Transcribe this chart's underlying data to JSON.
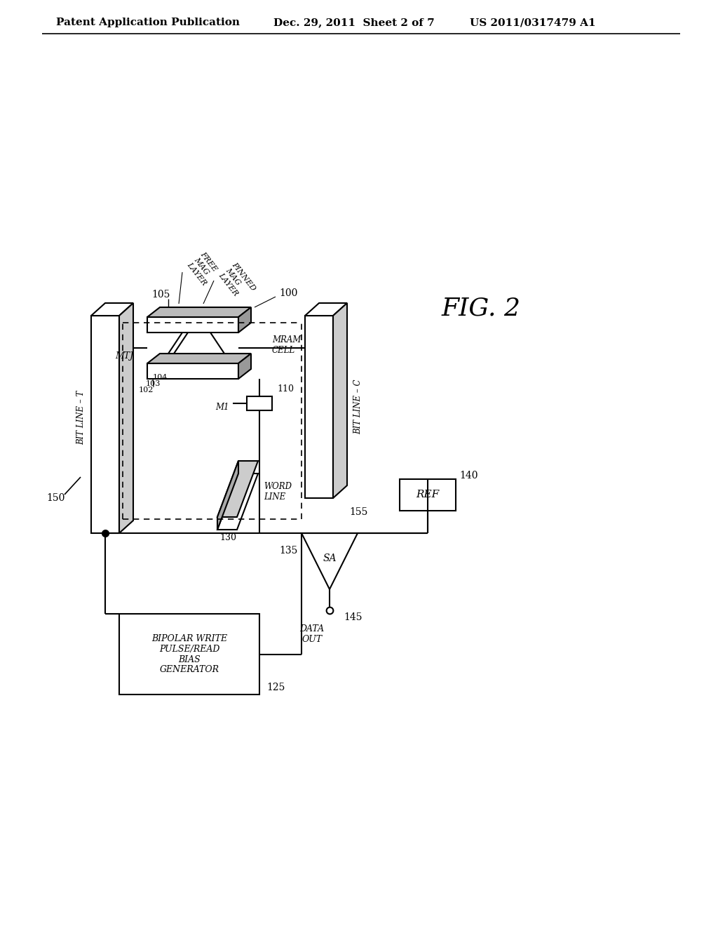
{
  "bg_color": "#ffffff",
  "line_color": "#000000",
  "header_text": "Patent Application Publication",
  "header_date": "Dec. 29, 2011  Sheet 2 of 7",
  "header_patent": "US 2011/0317479 A1",
  "fig_label": "FIG. 2",
  "label_150": "150",
  "label_105": "105",
  "label_100": "100",
  "label_102": "102",
  "label_103": "103",
  "label_104": "104",
  "label_110": "110",
  "label_130": "130",
  "label_155": "155",
  "label_125": "125",
  "label_135": "135",
  "label_140": "140",
  "label_145": "145",
  "label_mtj": "MTJ",
  "label_m1": "M1",
  "label_mram_cell": "MRAM\nCELL",
  "label_free_mag": "FREE\nMAG\nLAYER",
  "label_pinned_mag": "PINNED\nMAG\nLAYER",
  "label_bit_line_t": "BIT LINE – T",
  "label_bit_line_c": "BIT LINE – C",
  "label_word_line": "WORD\nLINE",
  "label_bipolar": "BIPOLAR WRITE\nPULSE/READ\nBIAS\nGENERATOR",
  "label_sa": "SA",
  "label_ref": "REF",
  "label_data_out": "DATA\nOUT"
}
